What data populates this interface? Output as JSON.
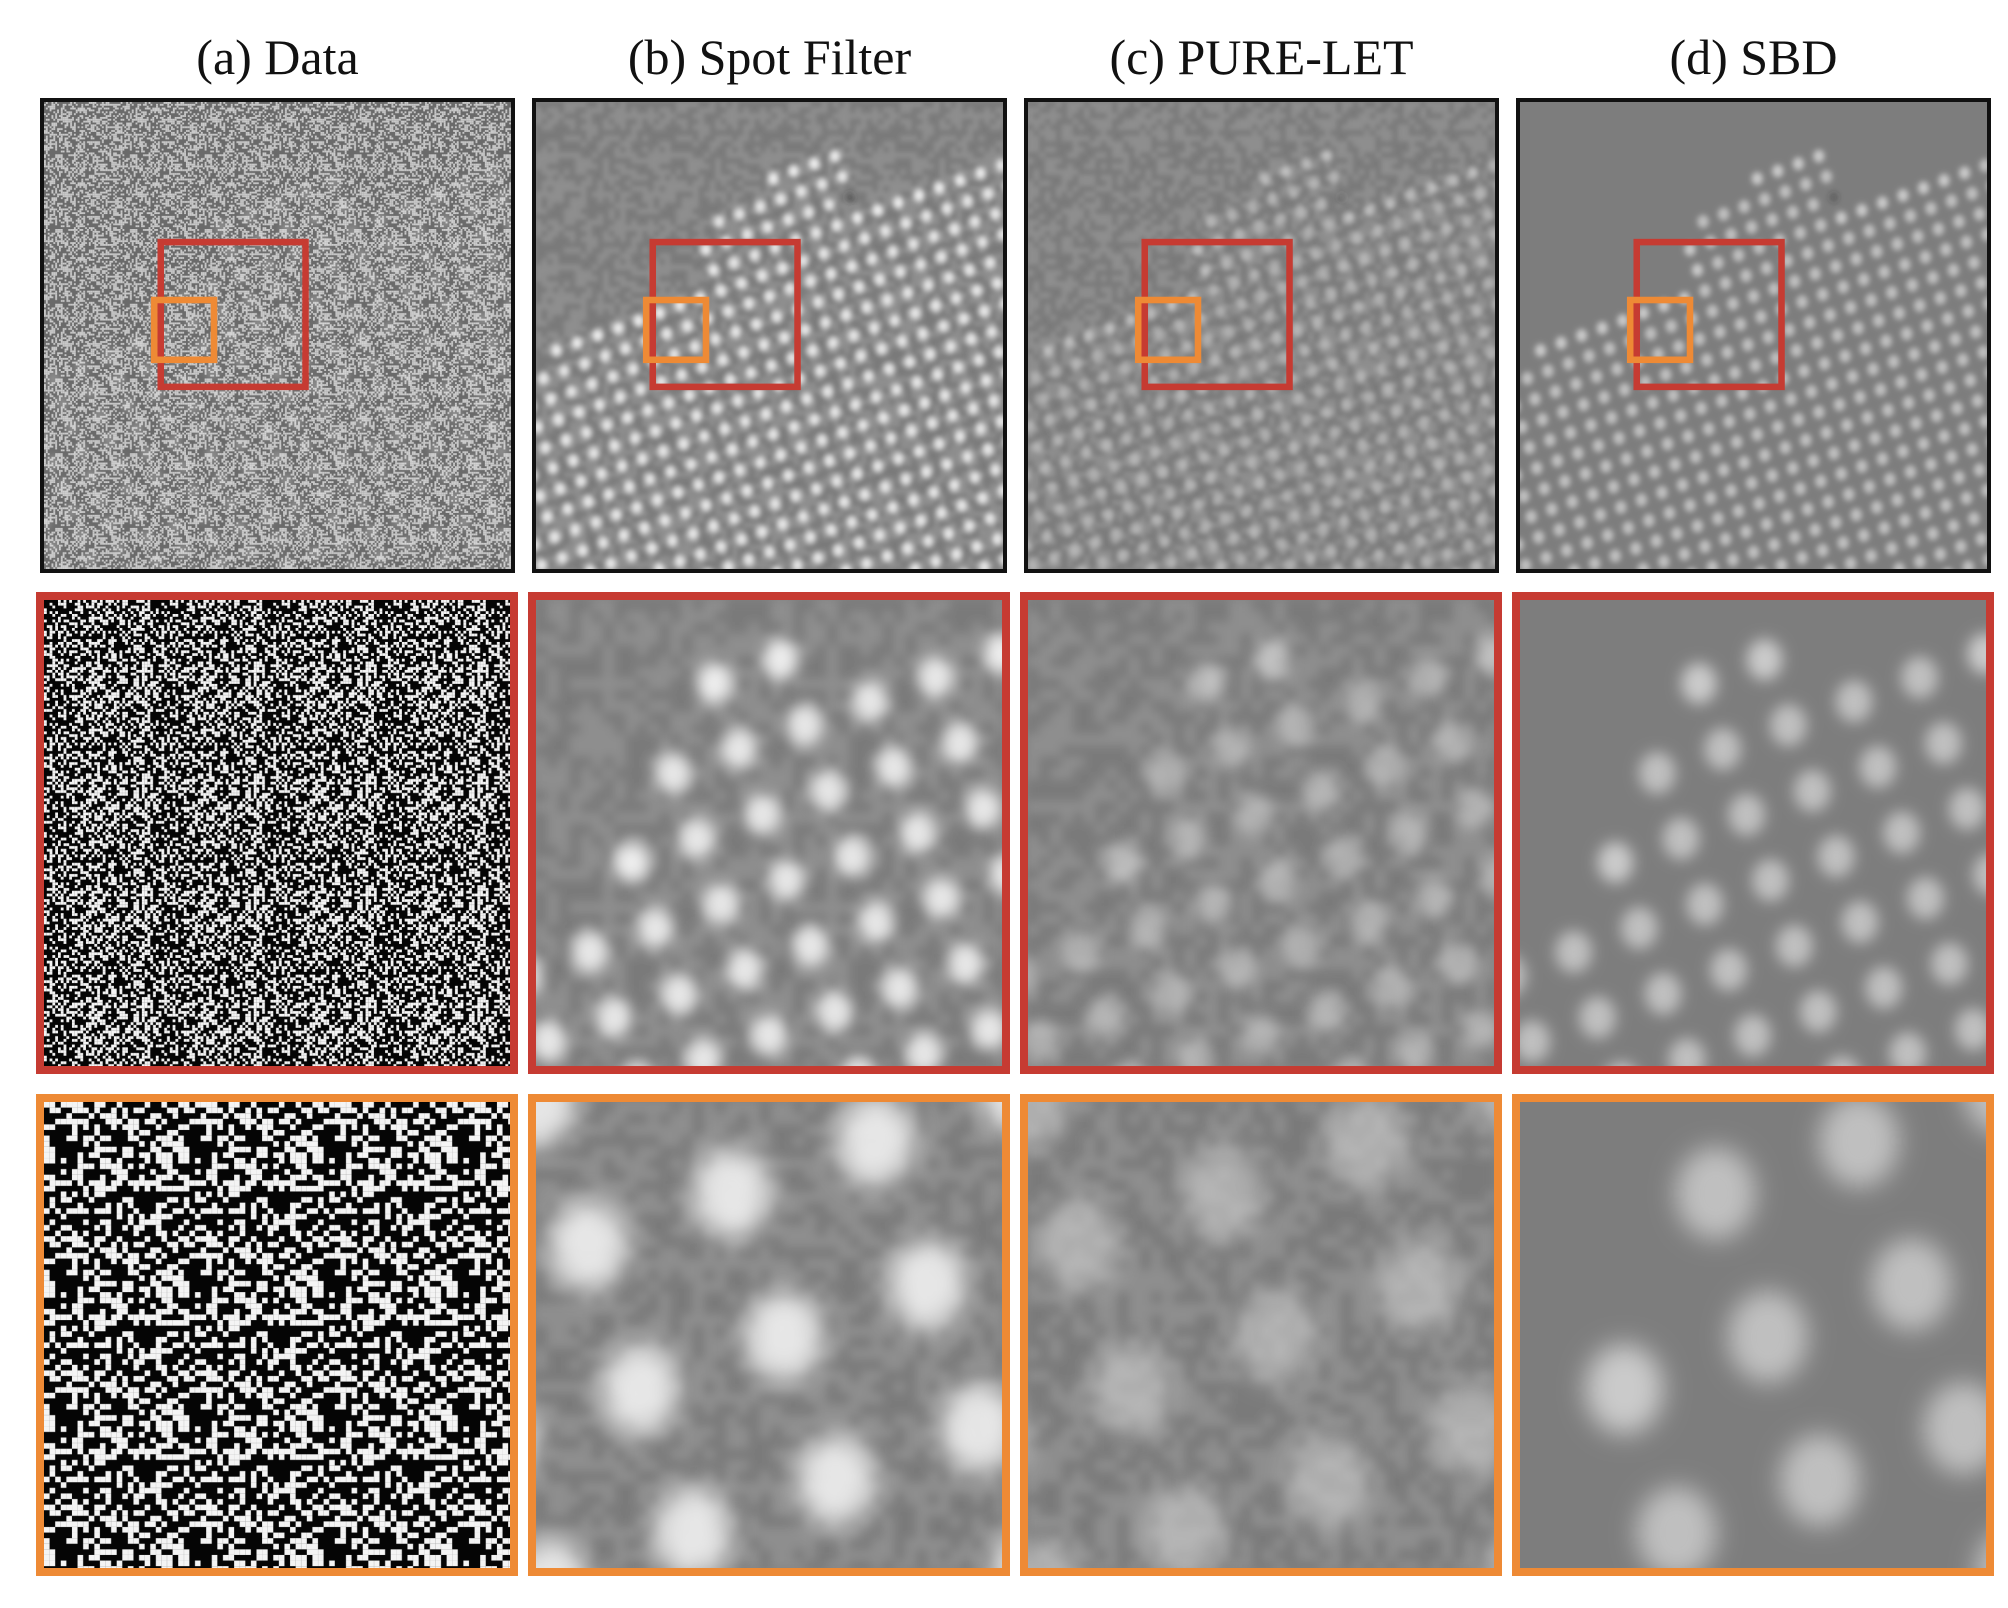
{
  "figure": {
    "columns": [
      {
        "id": "a",
        "title": "(a) Data",
        "style": "data"
      },
      {
        "id": "b",
        "title": "(b) Spot Filter",
        "style": "spot"
      },
      {
        "id": "c",
        "title": "(c) PURE-LET",
        "style": "pure"
      },
      {
        "id": "d",
        "title": "(d) SBD",
        "style": "sbd"
      }
    ],
    "rows": [
      {
        "id": "full",
        "kind": "full-image",
        "frame_color": "#111111"
      },
      {
        "id": "red-zoom",
        "kind": "zoom",
        "frame_color": "#c63b32"
      },
      {
        "id": "orange-zoom",
        "kind": "zoom",
        "frame_color": "#ee8a35"
      }
    ],
    "inset_colors": {
      "red": "#c63b32",
      "orange": "#ee8a35"
    }
  }
}
